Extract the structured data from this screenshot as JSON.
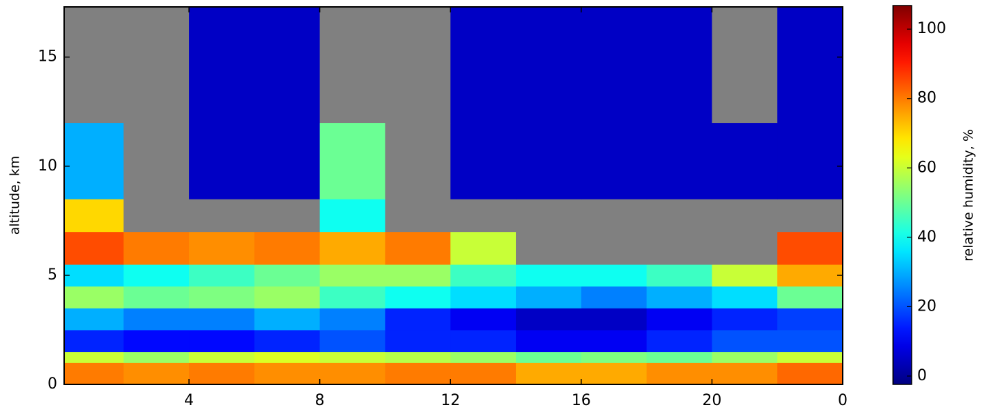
{
  "chart_data": {
    "type": "heatmap",
    "x_label": null,
    "y_label": "altitude, km",
    "colorbar_label": "relative humidity, %",
    "colormap": "jet",
    "missing_color": "#808080",
    "xlim": [
      0.18,
      24
    ],
    "xticks": [
      4,
      8,
      12,
      16,
      20,
      {
        "value": 24,
        "label": "0"
      }
    ],
    "ylim": [
      0,
      17.3
    ],
    "yticks": [
      0,
      5,
      10,
      15
    ],
    "clim": [
      -2.4,
      106.8
    ],
    "cticks": [
      0,
      20,
      40,
      60,
      80,
      100
    ],
    "x_bins": [
      0.18,
      2,
      4,
      6,
      8,
      10,
      12,
      14,
      16,
      18,
      20,
      22,
      24
    ],
    "y_bins": [
      0,
      1,
      1.5,
      2.5,
      3.5,
      4.5,
      5.5,
      7,
      8.5,
      12,
      17.3
    ],
    "values": [
      [
        80,
        78,
        80,
        78,
        78,
        80,
        80,
        75,
        75,
        78,
        78,
        82
      ],
      [
        60,
        55,
        60,
        62,
        60,
        58,
        55,
        50,
        52,
        50,
        55,
        60
      ],
      [
        15,
        12,
        12,
        15,
        20,
        15,
        15,
        10,
        10,
        15,
        20,
        20
      ],
      [
        30,
        25,
        25,
        30,
        25,
        15,
        10,
        5,
        5,
        10,
        15,
        18
      ],
      [
        55,
        50,
        52,
        55,
        45,
        40,
        35,
        30,
        25,
        30,
        35,
        50
      ],
      [
        35,
        40,
        45,
        50,
        55,
        55,
        45,
        40,
        40,
        45,
        60,
        75
      ],
      [
        85,
        80,
        78,
        80,
        75,
        80,
        60,
        null,
        null,
        null,
        null,
        85
      ],
      [
        70,
        null,
        null,
        null,
        40,
        null,
        null,
        null,
        null,
        null,
        null,
        null
      ],
      [
        30,
        null,
        5,
        5,
        50,
        null,
        5,
        5,
        5,
        5,
        5,
        5
      ],
      [
        null,
        null,
        5,
        5,
        null,
        null,
        5,
        5,
        5,
        5,
        null,
        5
      ]
    ]
  }
}
